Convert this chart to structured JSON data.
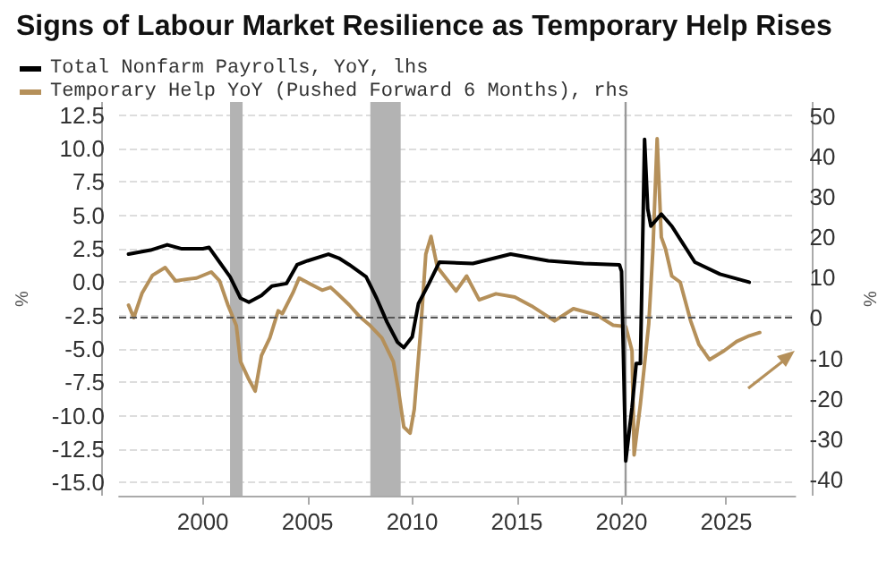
{
  "chart_data": {
    "type": "line",
    "title": "Signs of Labour Market Resilience as Temporary Help Rises",
    "ylabel": "%",
    "y2label": "%",
    "series": [
      {
        "name": "Total Nonfarm Payrolls, YoY, lhs",
        "color": "#000000",
        "x": [
          1996.45,
          1997.5,
          1998.3,
          1999,
          2000,
          2000.3,
          2000.8,
          2001.3,
          2001.8,
          2002.2,
          2002.8,
          2003.3,
          2004,
          2004.5,
          2005,
          2006,
          2006.5,
          2007,
          2007.8,
          2008.3,
          2008.8,
          2009.3,
          2009.6,
          2010,
          2010.3,
          2010.8,
          2011.3,
          2012.9,
          2014.7,
          2016.5,
          2018.2,
          2019.9,
          2020,
          2020.2,
          2020.5,
          2020.7,
          2020.9,
          2021.1,
          2021.25,
          2021.4,
          2021.9,
          2022.4,
          2023.5,
          2024.7,
          2026.1
        ],
        "values": [
          2.1,
          2.4,
          2.8,
          2.5,
          2.5,
          2.6,
          1.5,
          0.4,
          -1.2,
          -1.5,
          -1,
          -0.3,
          -0.1,
          1.3,
          1.6,
          2.1,
          1.8,
          1.3,
          0.4,
          -1.2,
          -3,
          -4.5,
          -4.9,
          -4.1,
          -1.6,
          -0.1,
          1.5,
          1.4,
          2.1,
          1.6,
          1.4,
          1.3,
          0.8,
          -13.4,
          -9.4,
          -6.1,
          -6.1,
          10.7,
          5.5,
          4.2,
          5.1,
          4.2,
          1.5,
          0.6,
          0
        ]
      },
      {
        "name": "Temporary Help YoY (Pushed Forward 6 Months), rhs",
        "color": "#b5905a",
        "axis": "y2",
        "x": [
          1996.45,
          1996.7,
          1997.1,
          1997.6,
          1998.2,
          1998.7,
          1999.2,
          1999.7,
          2000.4,
          2000.8,
          2001.2,
          2001.6,
          2001.8,
          2002.2,
          2002.5,
          2002.8,
          2003.2,
          2003.6,
          2003.8,
          2004.3,
          2004.6,
          2005.1,
          2005.7,
          2006.1,
          2006.4,
          2007,
          2007.5,
          2008,
          2008.55,
          2009.1,
          2009.35,
          2009.6,
          2009.9,
          2010.1,
          2010.4,
          2010.65,
          2010.9,
          2011.2,
          2012.1,
          2012.6,
          2013.2,
          2014,
          2014.9,
          2015.7,
          2016.8,
          2017.7,
          2018.8,
          2019.6,
          2020.2,
          2020.5,
          2020.6,
          2020.9,
          2021.3,
          2021.5,
          2021.7,
          2021.9,
          2022.1,
          2022.4,
          2022.8,
          2023.3,
          2023.7,
          2024.2,
          2024.9,
          2025.5,
          2026.1,
          2026.6
        ],
        "values": [
          3.2,
          0.1,
          6.2,
          10.6,
          12.5,
          9.2,
          9.6,
          9.9,
          11.4,
          9.2,
          3.2,
          -1.9,
          -10.8,
          -15.2,
          -18.1,
          -9.3,
          -4.9,
          1.8,
          1.1,
          6.2,
          9.9,
          8.5,
          6.9,
          7.6,
          6.2,
          3.2,
          0.3,
          -1.9,
          -4.9,
          -10.8,
          -18.1,
          -27,
          -28.5,
          -22.6,
          -3.4,
          15.8,
          20.2,
          12.6,
          6.7,
          10.4,
          4.5,
          6,
          5.2,
          3,
          -0.7,
          2.3,
          0.8,
          -1.8,
          -2.1,
          -8.1,
          -33.9,
          -21.3,
          -1.4,
          17.1,
          44.4,
          20,
          17.1,
          10.4,
          8.9,
          -0.7,
          -6.6,
          -10.3,
          -8.1,
          -5.8,
          -4.4,
          -3.6
        ]
      }
    ],
    "xlim": [
      1996,
      2028.3
    ],
    "xticks": [
      2000,
      2005,
      2010,
      2015,
      2020,
      2025
    ],
    "ylim": [
      -16,
      13.5
    ],
    "yticks": [
      {
        "value": 12.5,
        "label": "12.5"
      },
      {
        "value": 10,
        "label": "10.0"
      },
      {
        "value": 7.5,
        "label": "7.5"
      },
      {
        "value": 5,
        "label": "5.0"
      },
      {
        "value": 2.5,
        "label": "2.5"
      },
      {
        "value": 0,
        "label": "0.0"
      },
      {
        "value": -2.5,
        "label": "-2.5"
      },
      {
        "value": -5,
        "label": "-5.0"
      },
      {
        "value": -7.5,
        "label": "-7.5"
      },
      {
        "value": -10,
        "label": "-10.0"
      },
      {
        "value": -12.5,
        "label": "-12.5"
      },
      {
        "value": -15,
        "label": "-15.0"
      }
    ],
    "y2lim": [
      -44,
      53.5
    ],
    "y2ticks": [
      50,
      40,
      30,
      20,
      10,
      0,
      -10,
      -20,
      -30,
      -40
    ],
    "ref_lines": [
      {
        "axis": "y2",
        "value": 0,
        "color": "#555555",
        "line_style": "dashed"
      },
      {
        "axis": "x",
        "value": 2020.2,
        "color": "#999999",
        "line_style": "solid"
      }
    ],
    "bands": [
      {
        "axis": "x",
        "from": 2001.3,
        "to": 2001.9,
        "color": "#b3b3b3"
      },
      {
        "axis": "x",
        "from": 2008.0,
        "to": 2009.45,
        "color": "#b3b3b3"
      }
    ],
    "grid": "y",
    "legend": "top left",
    "marker": "none",
    "line_style": "solid"
  }
}
